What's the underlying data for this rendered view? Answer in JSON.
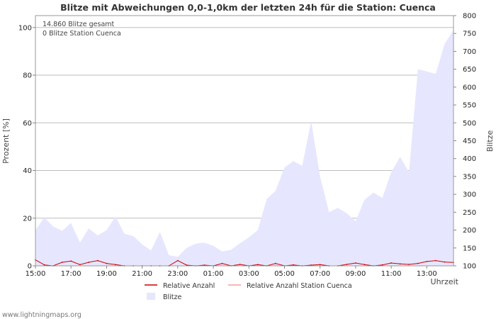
{
  "chart_data": {
    "type": "area",
    "title": "Blitze mit Abweichungen 0,0-1,0km der letzten 24h für die Station: Cuenca",
    "info": [
      "14.860 Blitze gesamt",
      "0 Blitze Station Cuenca"
    ],
    "xlabel": "Uhrzeit",
    "ylabel_left": "Prozent   [%]",
    "ylabel_right": "Blitze",
    "x_tick_labels": [
      "15:00",
      "17:00",
      "19:00",
      "21:00",
      "23:00",
      "01:00",
      "03:00",
      "05:00",
      "07:00",
      "09:00",
      "11:00",
      "13:00"
    ],
    "y_left_ticks": [
      0,
      20,
      40,
      60,
      80,
      100
    ],
    "y_left_range": [
      0,
      105
    ],
    "y_right_ticks": [
      100,
      150,
      200,
      250,
      300,
      350,
      400,
      450,
      500,
      550,
      600,
      650,
      700,
      750,
      800
    ],
    "y_right_range": [
      100,
      800
    ],
    "x_range_hours": [
      0,
      23.5
    ],
    "series": [
      {
        "name": "Blitze",
        "axis": "right",
        "color": "#e6e6ff",
        "x": [
          0,
          0.5,
          1,
          1.5,
          2,
          2.5,
          3,
          3.5,
          4,
          4.5,
          5,
          5.5,
          6,
          6.5,
          7,
          7.5,
          8,
          8.5,
          9,
          9.5,
          10,
          10.5,
          11,
          11.5,
          12,
          12.5,
          13,
          13.5,
          14,
          14.5,
          15,
          15.5,
          16,
          16.5,
          17,
          17.5,
          18,
          18.5,
          19,
          19.5,
          20,
          20.5,
          21,
          21.5,
          22,
          22.5,
          23,
          23.5
        ],
        "values": [
          200,
          235,
          210,
          198,
          220,
          165,
          205,
          185,
          200,
          238,
          190,
          183,
          160,
          143,
          195,
          130,
          125,
          150,
          162,
          165,
          156,
          140,
          145,
          163,
          180,
          200,
          287,
          310,
          375,
          393,
          380,
          505,
          350,
          250,
          262,
          247,
          225,
          285,
          305,
          290,
          362,
          405,
          362,
          650,
          644,
          637,
          720,
          760
        ]
      },
      {
        "name": "Relative Anzahl",
        "axis": "left",
        "color": "#cc0000",
        "x": [
          0,
          0.5,
          1,
          1.5,
          2,
          2.5,
          3,
          3.5,
          4,
          4.5,
          5,
          5.5,
          6,
          6.5,
          7,
          7.5,
          8,
          8.5,
          9,
          9.5,
          10,
          10.5,
          11,
          11.5,
          12,
          12.5,
          13,
          13.5,
          14,
          14.5,
          15,
          15.5,
          16,
          16.5,
          17,
          17.5,
          18,
          18.5,
          19,
          19.5,
          20,
          20.5,
          21,
          21.5,
          22,
          22.5,
          23,
          23.5
        ],
        "values": [
          2.5,
          0.4,
          0,
          1.5,
          2,
          0.5,
          1.5,
          2.2,
          1,
          0.5,
          0,
          0,
          0,
          0,
          0,
          0,
          2.2,
          0.3,
          0,
          0.3,
          0,
          1,
          0,
          0.6,
          0,
          0.5,
          0,
          1,
          0,
          0.4,
          0,
          0.3,
          0.5,
          0,
          0,
          0.6,
          1.2,
          0.5,
          0,
          0.4,
          1.2,
          0.8,
          0.6,
          1,
          1.8,
          2.2,
          1.6,
          1.4
        ]
      },
      {
        "name": "Relative Anzahl Station Cuenca",
        "axis": "left",
        "color": "#ff9999",
        "x": [
          0,
          23.5
        ],
        "values": [
          0,
          0
        ]
      }
    ],
    "legend": [
      "Relative Anzahl",
      "Relative Anzahl Station Cuenca",
      "Blitze"
    ]
  },
  "footer": "www.lightningmaps.org"
}
